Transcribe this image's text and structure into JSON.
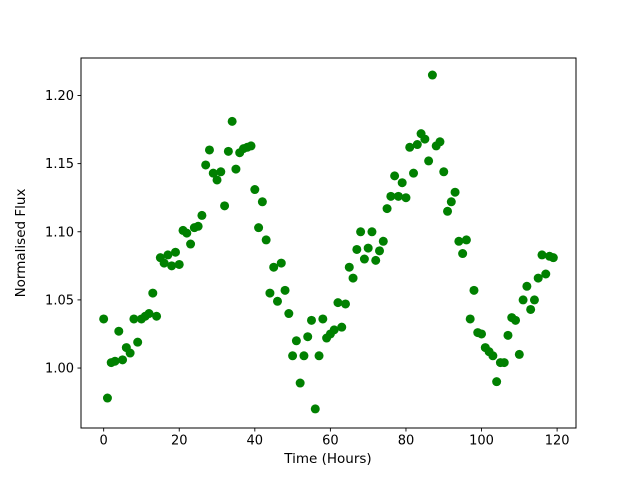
{
  "figure": {
    "background": "#ffffff",
    "plot_border_color": "#000000",
    "tick_color": "#000000",
    "text_color": "#000000"
  },
  "chart_data": {
    "type": "scatter",
    "title": "",
    "xlabel": "Time (Hours)",
    "ylabel": "Normalised Flux",
    "legend": "none",
    "grid": false,
    "marker_color": "#008000",
    "marker_diameter_px": 9,
    "xlim": [
      -6,
      125
    ],
    "ylim": [
      0.956,
      1.2275
    ],
    "x_ticks": [
      0,
      20,
      40,
      60,
      80,
      100,
      120
    ],
    "x_tick_labels": [
      "0",
      "20",
      "40",
      "60",
      "80",
      "100",
      "120"
    ],
    "y_ticks": [
      1.0,
      1.05,
      1.1,
      1.15,
      1.2
    ],
    "y_tick_labels": [
      "1.00",
      "1.05",
      "1.10",
      "1.15",
      "1.20"
    ],
    "x": [
      0,
      1,
      2,
      3,
      4,
      5,
      6,
      7,
      8,
      9,
      10,
      11,
      12,
      13,
      14,
      15,
      16,
      17,
      18,
      19,
      20,
      21,
      22,
      23,
      24,
      25,
      26,
      27,
      28,
      29,
      30,
      31,
      32,
      33,
      34,
      35,
      36,
      37,
      38,
      39,
      40,
      41,
      42,
      43,
      44,
      45,
      46,
      47,
      48,
      49,
      50,
      51,
      52,
      53,
      54,
      55,
      56,
      57,
      58,
      59,
      60,
      61,
      62,
      63,
      64,
      65,
      66,
      67,
      68,
      69,
      70,
      71,
      72,
      73,
      74,
      75,
      76,
      77,
      78,
      79,
      80,
      81,
      82,
      83,
      84,
      85,
      86,
      87,
      88,
      89,
      90,
      91,
      92,
      93,
      94,
      95,
      96,
      97,
      98,
      99,
      100,
      101,
      102,
      103,
      104,
      105,
      106,
      107,
      108,
      109,
      110,
      111,
      112,
      113,
      114,
      115,
      116,
      117,
      118,
      119
    ],
    "y": [
      1.036,
      0.978,
      1.004,
      1.005,
      1.027,
      1.006,
      1.015,
      1.011,
      1.036,
      1.019,
      1.036,
      1.038,
      1.04,
      1.055,
      1.038,
      1.081,
      1.077,
      1.083,
      1.075,
      1.085,
      1.076,
      1.101,
      1.099,
      1.091,
      1.103,
      1.104,
      1.112,
      1.149,
      1.16,
      1.143,
      1.138,
      1.144,
      1.119,
      1.159,
      1.181,
      1.146,
      1.158,
      1.161,
      1.162,
      1.163,
      1.131,
      1.103,
      1.122,
      1.094,
      1.055,
      1.074,
      1.049,
      1.077,
      1.057,
      1.04,
      1.009,
      1.02,
      0.989,
      1.009,
      1.023,
      1.035,
      0.97,
      1.009,
      1.036,
      1.022,
      1.025,
      1.028,
      1.048,
      1.03,
      1.047,
      1.074,
      1.066,
      1.087,
      1.1,
      1.08,
      1.088,
      1.1,
      1.079,
      1.086,
      1.093,
      1.117,
      1.126,
      1.141,
      1.126,
      1.136,
      1.125,
      1.162,
      1.143,
      1.164,
      1.172,
      1.168,
      1.152,
      1.215,
      1.163,
      1.166,
      1.144,
      1.115,
      1.122,
      1.129,
      1.093,
      1.084,
      1.094,
      1.036,
      1.057,
      1.026,
      1.025,
      1.015,
      1.012,
      1.009,
      0.99,
      1.004,
      1.004,
      1.024,
      1.037,
      1.035,
      1.01,
      1.05,
      1.06,
      1.043,
      1.05,
      1.066,
      1.083,
      1.069,
      1.082,
      1.081
    ]
  }
}
